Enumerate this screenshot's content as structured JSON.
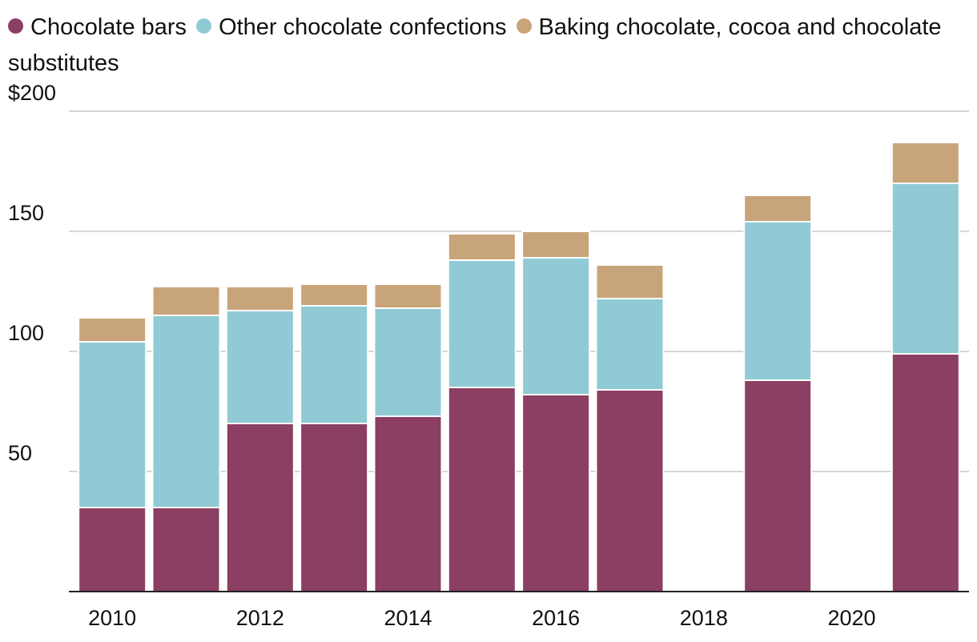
{
  "chart_data": {
    "type": "bar",
    "stacked": true,
    "title": "",
    "xlabel": "",
    "ylabel": "",
    "ylim": [
      0,
      200
    ],
    "yticks": [
      50,
      100,
      150,
      200
    ],
    "ytick_labels": [
      "50",
      "100",
      "150",
      "$200"
    ],
    "xticks": [
      2010,
      2012,
      2014,
      2016,
      2018,
      2020
    ],
    "xtick_labels": [
      "2010",
      "2012",
      "2014",
      "2016",
      "2018",
      "2020"
    ],
    "x_range": [
      2010,
      2021
    ],
    "grid": true,
    "legend_position": "top-left",
    "categories": [
      2010,
      2011,
      2012,
      2013,
      2014,
      2015,
      2016,
      2017,
      2019,
      2021
    ],
    "series": [
      {
        "name": "Chocolate bars",
        "color": "#8b3f62",
        "values": [
          35,
          35,
          70,
          70,
          73,
          85,
          82,
          84,
          88,
          99
        ]
      },
      {
        "name": "Other chocolate confections",
        "color": "#90cad4",
        "values": [
          69,
          80,
          47,
          49,
          45,
          53,
          57,
          38,
          66,
          71
        ]
      },
      {
        "name": "Baking chocolate, cocoa and chocolate substitutes",
        "color": "#c8a47a",
        "values": [
          10,
          12,
          10,
          9,
          10,
          11,
          11,
          14,
          11,
          17
        ]
      }
    ]
  }
}
